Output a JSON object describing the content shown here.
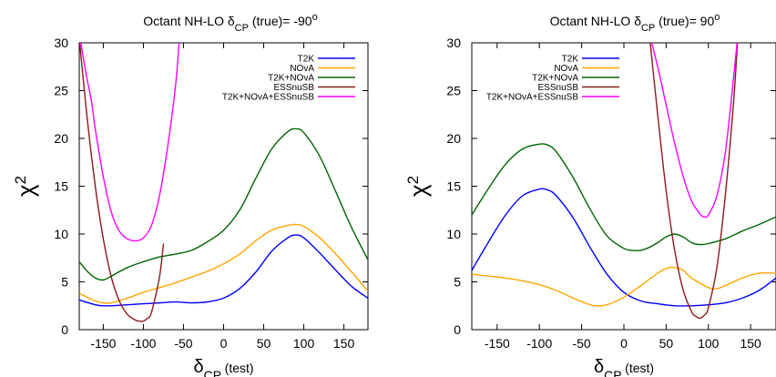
{
  "chart_data": [
    {
      "type": "line",
      "title": {
        "prefix": "Octant NH-LO δ",
        "sub": "CP",
        "mid": " (true)= -90",
        "sup": "o"
      },
      "xlabel": {
        "main": "δ",
        "sub": "CP",
        "rest": " (test)"
      },
      "ylabel": {
        "main": "χ",
        "sup": "2"
      },
      "xlim": [
        -180,
        180
      ],
      "ylim": [
        0,
        30
      ],
      "xticks": [
        -150,
        -100,
        -50,
        0,
        50,
        100,
        150
      ],
      "yticks": [
        0,
        5,
        10,
        15,
        20,
        25,
        30
      ],
      "legend_position": "top-right",
      "series": [
        {
          "name": "T2K",
          "color": "#0000ff",
          "x": [
            -180,
            -160,
            -150,
            -140,
            -120,
            -100,
            -80,
            -60,
            -40,
            -20,
            0,
            20,
            40,
            60,
            80,
            90,
            100,
            120,
            140,
            160,
            180
          ],
          "y": [
            3.1,
            2.6,
            2.5,
            2.5,
            2.6,
            2.7,
            2.8,
            2.9,
            2.8,
            2.9,
            3.3,
            4.3,
            6.0,
            8.2,
            9.6,
            9.9,
            9.6,
            8.0,
            6.2,
            4.5,
            3.3
          ]
        },
        {
          "name": "NOvA",
          "color": "#ffa500",
          "x": [
            -180,
            -160,
            -150,
            -140,
            -120,
            -100,
            -80,
            -60,
            -40,
            -20,
            0,
            20,
            40,
            60,
            80,
            90,
            100,
            120,
            140,
            160,
            180
          ],
          "y": [
            3.8,
            3.0,
            2.8,
            2.8,
            3.3,
            3.9,
            4.4,
            4.9,
            5.5,
            6.1,
            6.9,
            7.9,
            9.3,
            10.4,
            10.9,
            11.0,
            10.8,
            9.6,
            7.9,
            6.0,
            4.0
          ]
        },
        {
          "name": "T2K+NOvA",
          "color": "#006400",
          "x": [
            -180,
            -170,
            -160,
            -150,
            -140,
            -120,
            -100,
            -80,
            -60,
            -40,
            -20,
            0,
            20,
            40,
            60,
            80,
            90,
            100,
            120,
            140,
            160,
            180
          ],
          "y": [
            7.1,
            6.1,
            5.4,
            5.2,
            5.6,
            6.5,
            7.1,
            7.6,
            7.9,
            8.3,
            9.2,
            10.4,
            12.5,
            15.8,
            18.9,
            20.7,
            21.0,
            20.6,
            18.1,
            14.4,
            10.6,
            7.3
          ]
        },
        {
          "name": "ESSnuSB",
          "color": "#8b1a1a",
          "x": [
            -180,
            -170,
            -160,
            -150,
            -140,
            -130,
            -120,
            -110,
            -105,
            -100,
            -95,
            -90,
            -80,
            -75
          ],
          "y": [
            30.5,
            22.0,
            15.0,
            9.5,
            5.5,
            3.0,
            1.6,
            1.0,
            0.9,
            0.9,
            1.2,
            1.8,
            5.5,
            9.0
          ]
        },
        {
          "name": "T2K+NOvA+ESSnuSB",
          "color": "#ff00ff",
          "x": [
            -180,
            -172,
            -165,
            -160,
            -150,
            -140,
            -130,
            -120,
            -110,
            -100,
            -90,
            -80,
            -70,
            -60,
            -55
          ],
          "y": [
            31.0,
            27.0,
            24.0,
            21.0,
            16.0,
            12.3,
            10.3,
            9.5,
            9.3,
            9.6,
            10.9,
            14.0,
            19.0,
            25.5,
            30.5
          ]
        }
      ]
    },
    {
      "type": "line",
      "title": {
        "prefix": "Octant NH-LO δ",
        "sub": "CP",
        "mid": " (true)= 90",
        "sup": "o"
      },
      "xlabel": {
        "main": "δ",
        "sub": "CP",
        "rest": " (test)"
      },
      "ylabel": {
        "main": "χ",
        "sup": "2"
      },
      "xlim": [
        -180,
        180
      ],
      "ylim": [
        0,
        30
      ],
      "xticks": [
        -150,
        -100,
        -50,
        0,
        50,
        100,
        150
      ],
      "yticks": [
        0,
        5,
        10,
        15,
        20,
        25,
        30
      ],
      "legend_position": "top-left",
      "series": [
        {
          "name": "T2K",
          "color": "#0000ff",
          "x": [
            -180,
            -160,
            -140,
            -120,
            -100,
            -90,
            -80,
            -60,
            -40,
            -20,
            0,
            20,
            40,
            60,
            80,
            100,
            120,
            140,
            160,
            180
          ],
          "y": [
            6.2,
            9.2,
            12.0,
            14.0,
            14.7,
            14.6,
            14.0,
            11.7,
            8.6,
            5.8,
            3.9,
            3.0,
            2.7,
            2.5,
            2.5,
            2.6,
            2.8,
            3.3,
            4.1,
            5.4
          ]
        },
        {
          "name": "NOvA",
          "color": "#ffa500",
          "x": [
            -180,
            -160,
            -140,
            -120,
            -100,
            -80,
            -60,
            -40,
            -30,
            -20,
            0,
            20,
            40,
            50,
            60,
            70,
            80,
            100,
            110,
            120,
            140,
            160,
            180
          ],
          "y": [
            5.8,
            5.6,
            5.4,
            5.1,
            4.7,
            4.1,
            3.3,
            2.6,
            2.5,
            2.6,
            3.4,
            4.6,
            5.9,
            6.4,
            6.5,
            6.2,
            5.4,
            4.4,
            4.3,
            4.6,
            5.4,
            5.9,
            5.9
          ]
        },
        {
          "name": "T2K+NOvA",
          "color": "#006400",
          "x": [
            -180,
            -160,
            -140,
            -120,
            -100,
            -90,
            -80,
            -60,
            -40,
            -20,
            0,
            10,
            20,
            30,
            40,
            50,
            60,
            70,
            80,
            90,
            100,
            120,
            140,
            160,
            180
          ],
          "y": [
            12.0,
            14.8,
            17.3,
            18.9,
            19.4,
            19.3,
            18.6,
            15.9,
            12.6,
            9.8,
            8.5,
            8.3,
            8.3,
            8.6,
            9.1,
            9.7,
            10.0,
            9.7,
            9.1,
            8.9,
            9.0,
            9.5,
            10.3,
            11.0,
            11.8
          ]
        },
        {
          "name": "ESSnuSB",
          "color": "#8b1a1a",
          "x": [
            30,
            40,
            50,
            60,
            70,
            80,
            85,
            90,
            95,
            100,
            110,
            120,
            130,
            135
          ],
          "y": [
            31.0,
            22.5,
            14.5,
            8.3,
            4.2,
            1.9,
            1.4,
            1.2,
            1.5,
            2.3,
            6.5,
            14.0,
            24.0,
            31.0
          ]
        },
        {
          "name": "T2K+NOvA+ESSnuSB",
          "color": "#ff00ff",
          "x": [
            30,
            40,
            50,
            60,
            70,
            80,
            90,
            95,
            100,
            110,
            120,
            130,
            135
          ],
          "y": [
            31.0,
            27.5,
            23.5,
            19.5,
            16.1,
            13.5,
            12.1,
            11.8,
            12.0,
            14.0,
            18.5,
            26.5,
            31.0
          ]
        }
      ]
    }
  ]
}
